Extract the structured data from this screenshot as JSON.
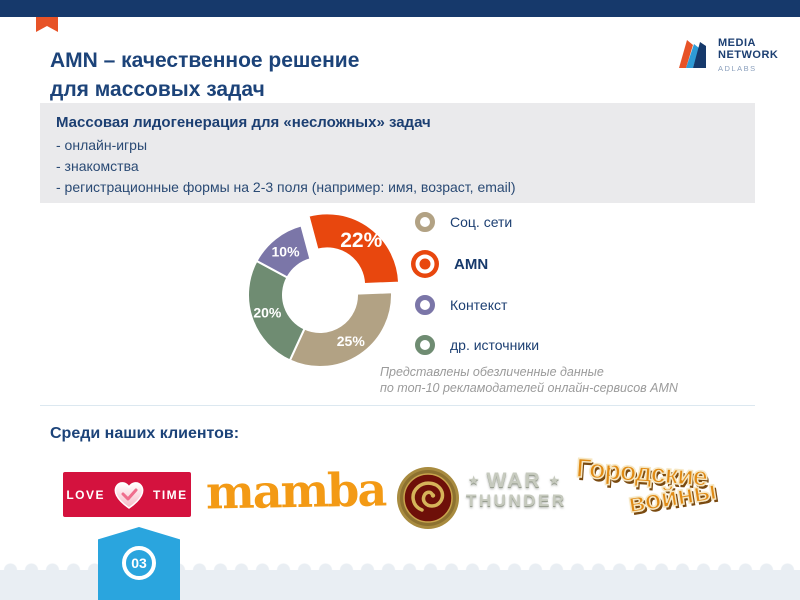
{
  "slide": {
    "title_line1": "AMN – качественное решение",
    "title_line2": "для массовых задач",
    "page_number": "03"
  },
  "brand": {
    "line1": "MEDIA",
    "line2": "NETWORK",
    "line3": "ADLABS",
    "colors": {
      "orange": "#e75327",
      "light_blue": "#2f9cd6",
      "navy": "#16396b"
    }
  },
  "info_box": {
    "heading": "Массовая лидогенерация для «несложных» задач",
    "bullets": [
      "- онлайн-игры",
      "- знакомства",
      "- регистрационные формы на 2-3 поля (например: имя, возраст, email)"
    ]
  },
  "chart_data": {
    "type": "pie",
    "subtype": "donut",
    "start_angle_deg": -15,
    "slices": [
      {
        "key": "amn",
        "label": "AMN",
        "value": 22,
        "color": "#e8470e",
        "exploded": true
      },
      {
        "key": "soc-seti",
        "label": "Соц. сети",
        "value": 25,
        "color": "#b2a284"
      },
      {
        "key": "dr-istochniki",
        "label": "др. источники",
        "value": 20,
        "color": "#6f8c72"
      },
      {
        "key": "kontekst",
        "label": "Контекст",
        "value": 10,
        "color": "#7b76a8"
      }
    ],
    "legend": [
      {
        "label": "Соц. сети",
        "color": "#b2a284",
        "marker": "ring"
      },
      {
        "label": "AMN",
        "color": "#e8470e",
        "marker": "disc",
        "bold": true
      },
      {
        "label": "Контекст",
        "color": "#7b76a8",
        "marker": "ring"
      },
      {
        "label": "др. источники",
        "color": "#6f8c72",
        "marker": "ring"
      }
    ],
    "legend_position": "right",
    "note_line1": "Представлены обезличенные данные",
    "note_line2": "по топ-10 рекламодателей онлайн-сервисов AMN"
  },
  "clients": {
    "heading": "Среди наших клиентов:",
    "logos": [
      {
        "name": "love-time",
        "word1": "LOVE",
        "word2": "TIME"
      },
      {
        "name": "mamba",
        "text": "mamba"
      },
      {
        "name": "dragon-coin"
      },
      {
        "name": "war-thunder",
        "star": "★",
        "word1": "WAR",
        "word2": "THUNDER"
      },
      {
        "name": "gorodskie-voyny",
        "line1": "Городские",
        "line2": "войны"
      }
    ]
  }
}
